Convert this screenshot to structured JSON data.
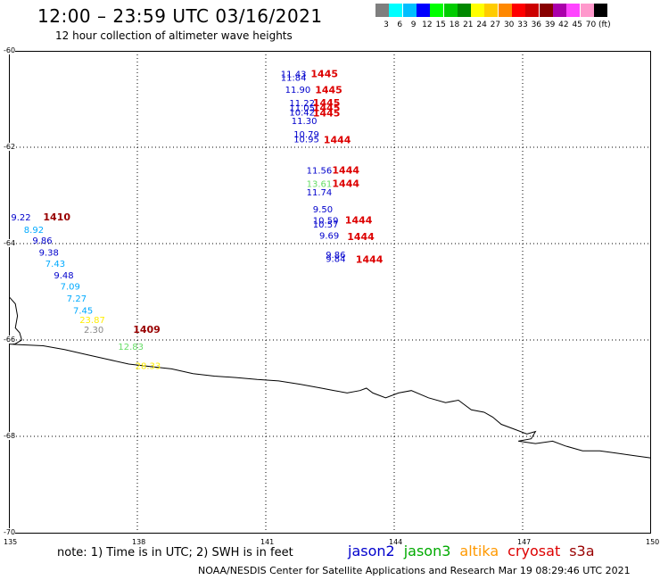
{
  "title": "12:00 – 23:59 UTC 03/16/2021",
  "subtitle": "12 hour collection of altimeter wave heights",
  "scale": {
    "colors": [
      "#7f7f7f",
      "#00ffff",
      "#00bfff",
      "#0000ff",
      "#00ff00",
      "#00cc00",
      "#008800",
      "#ffff00",
      "#ffcc00",
      "#ff8800",
      "#ff0000",
      "#cc0000",
      "#880000",
      "#aa00aa",
      "#ff44ff",
      "#ff99cc",
      "#000000"
    ],
    "labels": [
      "3",
      "6",
      "9",
      "12",
      "15",
      "18",
      "21",
      "24",
      "27",
      "30",
      "33",
      "36",
      "39",
      "42",
      "45",
      "70",
      "(ft)"
    ]
  },
  "axes": {
    "lon_ticks": [
      "135",
      "138",
      "141",
      "144",
      "147",
      "150"
    ],
    "lat_ticks": [
      "-60",
      "-62",
      "-64",
      "-66",
      "-68",
      "-70"
    ]
  },
  "note": "note: 1) Time is in UTC; 2) SWH is in feet",
  "satellites": [
    {
      "name": "jason2",
      "color": "#0000cc"
    },
    {
      "name": "jason3",
      "color": "#00aa00"
    },
    {
      "name": "altika",
      "color": "#ff9900"
    },
    {
      "name": "cryosat",
      "color": "#dd0000"
    },
    {
      "name": "s3a",
      "color": "#990000"
    }
  ],
  "footer": "NOAA/NESDIS Center for Satellite Applications and Research   Mar 19 08:29:46 UTC 2021",
  "observations": [
    {
      "lon": 141.35,
      "lat": -60.55,
      "value": "11.43",
      "color": "#0000cc"
    },
    {
      "lon": 141.35,
      "lat": -60.62,
      "value": "11.84",
      "color": "#0000cc"
    },
    {
      "lon": 141.45,
      "lat": -60.87,
      "value": "11.90",
      "color": "#0000cc"
    },
    {
      "lon": 141.55,
      "lat": -61.15,
      "value": "11.22",
      "color": "#0000cc"
    },
    {
      "lon": 141.55,
      "lat": -61.25,
      "value": "11.05",
      "color": "#0000cc"
    },
    {
      "lon": 141.55,
      "lat": -61.34,
      "value": "10.42",
      "color": "#0000cc"
    },
    {
      "lon": 141.6,
      "lat": -61.52,
      "value": "11.30",
      "color": "#0000cc"
    },
    {
      "lon": 141.65,
      "lat": -61.8,
      "value": "10.79",
      "color": "#0000cc"
    },
    {
      "lon": 141.65,
      "lat": -61.9,
      "value": "10.95",
      "color": "#0000cc"
    },
    {
      "lon": 141.95,
      "lat": -62.55,
      "value": "11.56",
      "color": "#0000cc"
    },
    {
      "lon": 141.95,
      "lat": -62.82,
      "value": "13.61",
      "color": "#66dd66"
    },
    {
      "lon": 141.95,
      "lat": -63.0,
      "value": "11.74",
      "color": "#0000cc"
    },
    {
      "lon": 142.1,
      "lat": -63.35,
      "value": "9.50",
      "color": "#0000cc"
    },
    {
      "lon": 142.1,
      "lat": -63.58,
      "value": "10.59",
      "color": "#0000cc"
    },
    {
      "lon": 142.1,
      "lat": -63.67,
      "value": "10.57",
      "color": "#0000cc"
    },
    {
      "lon": 142.25,
      "lat": -63.9,
      "value": "9.69",
      "color": "#0000cc"
    },
    {
      "lon": 142.4,
      "lat": -64.3,
      "value": "9.86",
      "color": "#0000cc"
    },
    {
      "lon": 142.4,
      "lat": -64.38,
      "value": "9.84",
      "color": "#0000cc"
    },
    {
      "lon": 135.05,
      "lat": -63.52,
      "value": "9.22",
      "color": "#0000cc"
    },
    {
      "lon": 135.35,
      "lat": -63.78,
      "value": "8.92",
      "color": "#00aaff"
    },
    {
      "lon": 135.55,
      "lat": -64.0,
      "value": "9.86",
      "color": "#0000cc"
    },
    {
      "lon": 135.7,
      "lat": -64.25,
      "value": "9.38",
      "color": "#0000cc"
    },
    {
      "lon": 135.85,
      "lat": -64.48,
      "value": "7.43",
      "color": "#00aaff"
    },
    {
      "lon": 136.05,
      "lat": -64.72,
      "value": "9.48",
      "color": "#0000cc"
    },
    {
      "lon": 136.2,
      "lat": -64.95,
      "value": "7.09",
      "color": "#00aaff"
    },
    {
      "lon": 136.35,
      "lat": -65.2,
      "value": "7.27",
      "color": "#00aaff"
    },
    {
      "lon": 136.5,
      "lat": -65.45,
      "value": "7.45",
      "color": "#00aaff"
    },
    {
      "lon": 136.65,
      "lat": -65.65,
      "value": "23.87",
      "color": "#ffee00"
    },
    {
      "lon": 136.75,
      "lat": -65.85,
      "value": "2.30",
      "color": "#888888"
    },
    {
      "lon": 137.55,
      "lat": -66.2,
      "value": "12.83",
      "color": "#66dd66"
    },
    {
      "lon": 137.95,
      "lat": -66.6,
      "value": "28.33",
      "color": "#ffee00"
    }
  ],
  "passes": [
    {
      "lon": 142.05,
      "lat": -60.55,
      "value": "1445",
      "color": "#dd0000"
    },
    {
      "lon": 142.15,
      "lat": -60.88,
      "value": "1445",
      "color": "#dd0000"
    },
    {
      "lon": 142.1,
      "lat": -61.15,
      "value": "1445",
      "color": "#dd0000"
    },
    {
      "lon": 142.1,
      "lat": -61.25,
      "value": "1445",
      "color": "#dd0000"
    },
    {
      "lon": 142.1,
      "lat": -61.36,
      "value": "1445",
      "color": "#dd0000"
    },
    {
      "lon": 142.35,
      "lat": -61.92,
      "value": "1444",
      "color": "#dd0000"
    },
    {
      "lon": 142.55,
      "lat": -62.55,
      "value": "1444",
      "color": "#dd0000"
    },
    {
      "lon": 142.55,
      "lat": -62.82,
      "value": "1444",
      "color": "#dd0000"
    },
    {
      "lon": 142.85,
      "lat": -63.58,
      "value": "1444",
      "color": "#dd0000"
    },
    {
      "lon": 142.9,
      "lat": -63.93,
      "value": "1444",
      "color": "#dd0000"
    },
    {
      "lon": 143.1,
      "lat": -64.4,
      "value": "1444",
      "color": "#dd0000"
    },
    {
      "lon": 135.8,
      "lat": -63.52,
      "value": "1410",
      "color": "#990000"
    },
    {
      "lon": 137.9,
      "lat": -65.85,
      "value": "1409",
      "color": "#990000"
    }
  ],
  "coastline": [
    [
      135.0,
      -65.1
    ],
    [
      135.15,
      -65.25
    ],
    [
      135.2,
      -65.5
    ],
    [
      135.15,
      -65.75
    ],
    [
      135.25,
      -65.85
    ],
    [
      135.3,
      -66.0
    ],
    [
      135.15,
      -66.08
    ],
    [
      135.0,
      -66.05
    ],
    [
      134.9,
      -66.0
    ]
  ],
  "coastline2": [
    [
      134.9,
      -66.08
    ],
    [
      135.3,
      -66.1
    ],
    [
      135.8,
      -66.12
    ],
    [
      136.3,
      -66.2
    ],
    [
      136.8,
      -66.3
    ],
    [
      137.3,
      -66.4
    ],
    [
      137.8,
      -66.5
    ],
    [
      138.3,
      -66.55
    ],
    [
      138.8,
      -66.6
    ],
    [
      139.3,
      -66.7
    ],
    [
      139.8,
      -66.75
    ],
    [
      140.3,
      -66.78
    ],
    [
      140.8,
      -66.82
    ],
    [
      141.3,
      -66.85
    ],
    [
      141.8,
      -66.92
    ],
    [
      142.3,
      -67.0
    ],
    [
      142.6,
      -67.05
    ],
    [
      142.9,
      -67.1
    ],
    [
      143.2,
      -67.05
    ],
    [
      143.35,
      -67.0
    ],
    [
      143.5,
      -67.1
    ],
    [
      143.8,
      -67.2
    ],
    [
      144.1,
      -67.1
    ],
    [
      144.4,
      -67.05
    ],
    [
      144.8,
      -67.2
    ],
    [
      145.2,
      -67.3
    ],
    [
      145.5,
      -67.25
    ],
    [
      145.8,
      -67.45
    ],
    [
      146.1,
      -67.5
    ],
    [
      146.3,
      -67.6
    ],
    [
      146.5,
      -67.75
    ],
    [
      146.8,
      -67.85
    ],
    [
      147.1,
      -67.95
    ],
    [
      147.3,
      -67.9
    ],
    [
      147.2,
      -68.05
    ],
    [
      146.9,
      -68.1
    ],
    [
      147.3,
      -68.15
    ],
    [
      147.7,
      -68.1
    ],
    [
      148.0,
      -68.2
    ],
    [
      148.4,
      -68.3
    ],
    [
      148.8,
      -68.3
    ],
    [
      149.2,
      -68.35
    ],
    [
      149.6,
      -68.4
    ],
    [
      150.0,
      -68.45
    ]
  ]
}
